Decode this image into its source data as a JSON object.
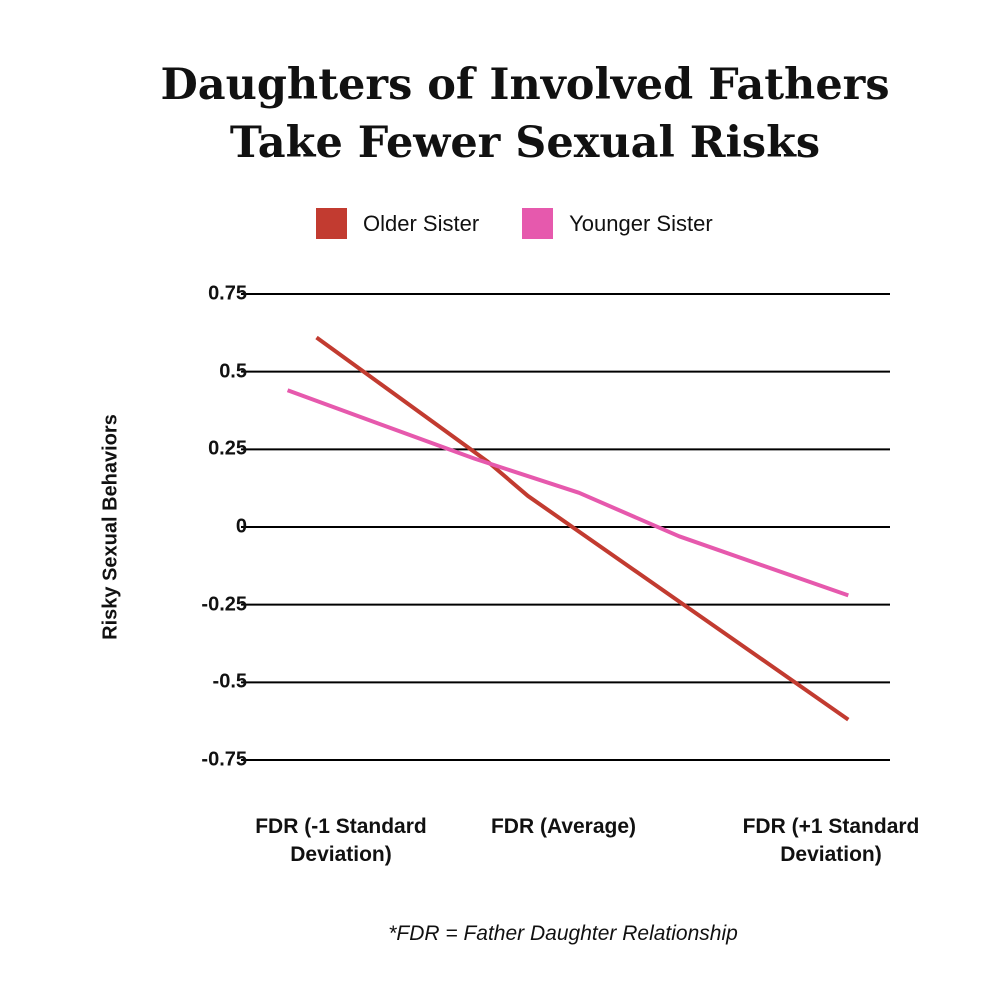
{
  "chart_data": {
    "type": "line",
    "title": "Daughters of Involved Fathers Take Fewer Sexual Risks",
    "title_lines": [
      "Daughters of Involved Fathers",
      "Take Fewer Sexual Risks"
    ],
    "ylabel": "Risky Sexual Behaviors",
    "xlabel": "",
    "categories": [
      [
        "FDR (-1 Standard",
        "Deviation)"
      ],
      [
        "FDR (Average)"
      ],
      [
        "FDR (+1 Standard",
        "Deviation)"
      ]
    ],
    "yticks": [
      "0.75",
      "0.5",
      "0.25",
      "0",
      "-0.25",
      "-0.5",
      "-0.75"
    ],
    "ytick_values": [
      0.75,
      0.5,
      0.25,
      0,
      -0.25,
      -0.5,
      -0.75
    ],
    "ylim": [
      -0.75,
      0.75
    ],
    "grid": true,
    "legend_position": "top-center",
    "series": [
      {
        "name": "Older Sister",
        "color": "#c23b30",
        "points": [
          [
            -0.11,
            0.61
          ],
          [
            0.66,
            0.21
          ],
          [
            0.84,
            0.1
          ],
          [
            2.28,
            -0.62
          ]
        ]
      },
      {
        "name": "Younger Sister",
        "color": "#e659ad",
        "points": [
          [
            -0.24,
            0.44
          ],
          [
            0.6,
            0.22
          ],
          [
            1.07,
            0.11
          ],
          [
            1.52,
            -0.03
          ],
          [
            2.28,
            -0.22
          ]
        ]
      }
    ],
    "footnote": "*FDR = Father Daughter Relationship"
  }
}
